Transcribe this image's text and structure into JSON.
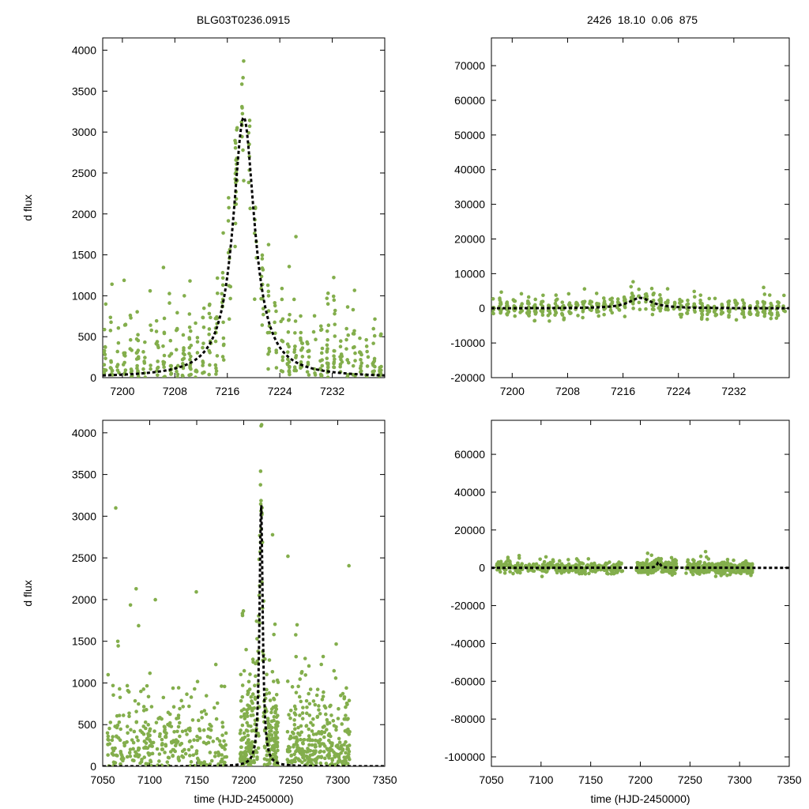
{
  "header": {
    "title_left": "BLG03T0236.0915",
    "title_right": "2426  18.10  0.06  875"
  },
  "colors": {
    "points": "#83ae4c",
    "model": "#000000",
    "axes": "#000000"
  },
  "chart_data": [
    {
      "id": "top-left",
      "type": "scatter",
      "ylabel": "d flux",
      "xlabel": "",
      "xlim": [
        7197,
        7240
      ],
      "ylim": [
        0,
        4150
      ],
      "xticks": [
        7200,
        7208,
        7216,
        7224,
        7232
      ],
      "yticks": [
        0,
        500,
        1000,
        1500,
        2000,
        2500,
        3000,
        3500,
        4000
      ],
      "series": [
        {
          "name": "photometry",
          "kind": "points",
          "t0": 7218.5,
          "peak": 3180,
          "tE": 2.0,
          "noise": 380
        },
        {
          "name": "model",
          "kind": "dashed-line",
          "t0": 7218.5,
          "peak": 3180,
          "tE": 2.0
        }
      ]
    },
    {
      "id": "top-right",
      "type": "scatter",
      "ylabel": "",
      "xlabel": "",
      "xlim": [
        7197,
        7240
      ],
      "ylim": [
        -20000,
        78000
      ],
      "xticks": [
        7200,
        7208,
        7216,
        7224,
        7232
      ],
      "yticks": [
        -20000,
        -10000,
        0,
        10000,
        20000,
        30000,
        40000,
        50000,
        60000,
        70000
      ],
      "series": [
        {
          "name": "photometry",
          "kind": "points",
          "t0": 7218.5,
          "peak": 3000,
          "tE": 2.0,
          "noise": 1400
        },
        {
          "name": "model",
          "kind": "dashed-line",
          "t0": 7218.5,
          "peak": 3000,
          "tE": 2.0
        }
      ]
    },
    {
      "id": "bottom-left",
      "type": "scatter",
      "ylabel": "d flux",
      "xlabel": "time (HJD-2450000)",
      "xlim": [
        7050,
        7350
      ],
      "ylim": [
        0,
        4150
      ],
      "xticks": [
        7050,
        7100,
        7150,
        7200,
        7250,
        7300,
        7350
      ],
      "yticks": [
        0,
        500,
        1000,
        1500,
        2000,
        2500,
        3000,
        3500,
        4000
      ],
      "series": [
        {
          "name": "photometry",
          "kind": "points",
          "t0": 7218.5,
          "peak": 3180,
          "tE": 2.0,
          "noise": 550
        },
        {
          "name": "model",
          "kind": "dashed-line",
          "t0": 7218.5,
          "peak": 3180,
          "tE": 2.0
        }
      ]
    },
    {
      "id": "bottom-right",
      "type": "scatter",
      "ylabel": "",
      "xlabel": "time (HJD-2450000)",
      "xlim": [
        7050,
        7350
      ],
      "ylim": [
        -105000,
        78000
      ],
      "xticks": [
        7050,
        7100,
        7150,
        7200,
        7250,
        7300,
        7350
      ],
      "yticks": [
        -100000,
        -80000,
        -60000,
        -40000,
        -20000,
        0,
        20000,
        40000,
        60000
      ],
      "series": [
        {
          "name": "photometry",
          "kind": "points",
          "t0": 7218.5,
          "peak": 3000,
          "tE": 2.0,
          "noise": 1500
        },
        {
          "name": "model",
          "kind": "dashed-line",
          "t0": 7218.5,
          "peak": 3000,
          "tE": 2.0
        }
      ]
    }
  ]
}
